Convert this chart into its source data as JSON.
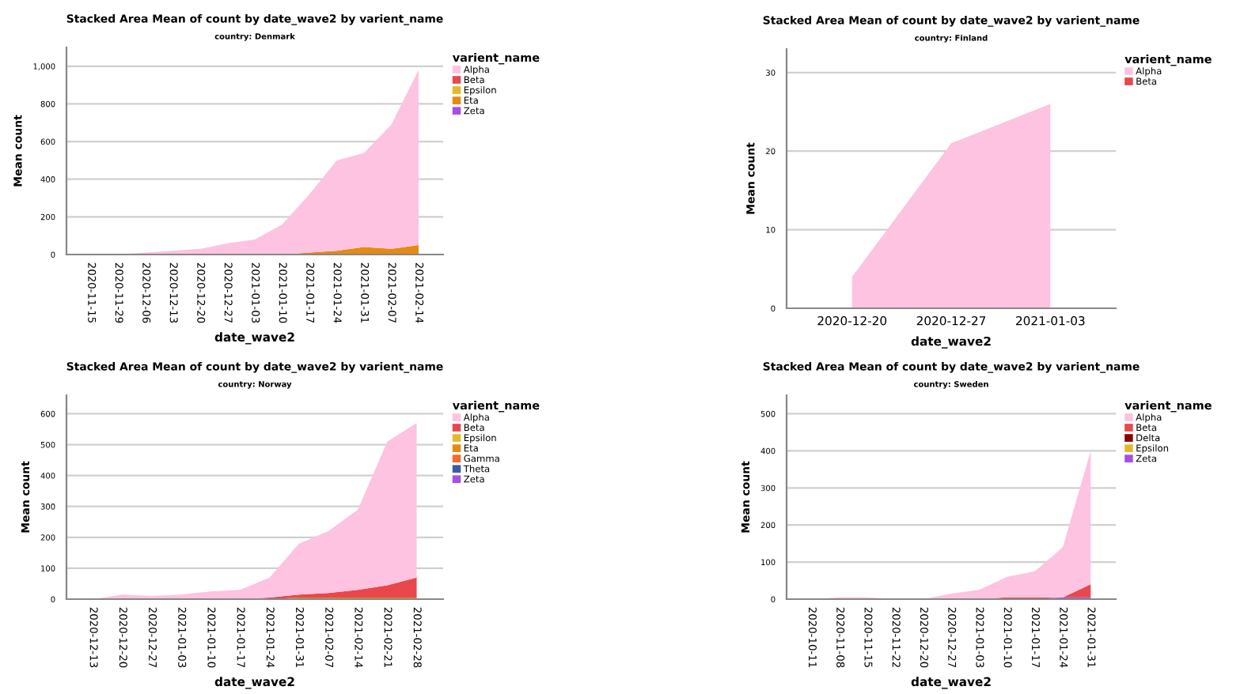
{
  "chart_data": [
    {
      "type": "area",
      "stacked": true,
      "title": "Stacked Area Mean of count by date_wave2 by varient_name",
      "subtitle": "country: Denmark",
      "xlabel": "date_wave2",
      "ylabel": "Mean count",
      "legend_title": "varient_name",
      "legend": "right",
      "grid": "y",
      "ylim": [
        0,
        1100
      ],
      "yticks": [
        0,
        200,
        400,
        600,
        800,
        {
          "value": 1000,
          "label": "1,000"
        }
      ],
      "categories": [
        "2020-11-15",
        "2020-11-29",
        "2020-12-06",
        "2020-12-13",
        "2020-12-20",
        "2020-12-27",
        "2021-01-03",
        "2021-01-10",
        "2021-01-17",
        "2021-01-24",
        "2021-01-31",
        "2021-02-07",
        "2021-02-14"
      ],
      "series": [
        {
          "name": "Zeta",
          "color": "#a64fe8",
          "values": [
            null,
            null,
            null,
            null,
            null,
            null,
            null,
            null,
            null,
            null,
            null,
            null,
            null
          ]
        },
        {
          "name": "Eta",
          "color": "#e58a12",
          "values": [
            0,
            0,
            0,
            0,
            0,
            0,
            0,
            0,
            10,
            20,
            40,
            30,
            50
          ]
        },
        {
          "name": "Epsilon",
          "color": "#e3b92a",
          "values": [
            null,
            null,
            null,
            null,
            null,
            null,
            null,
            null,
            null,
            null,
            null,
            null,
            null
          ]
        },
        {
          "name": "Beta",
          "color": "#e8474c",
          "values": [
            null,
            null,
            null,
            null,
            null,
            null,
            null,
            null,
            null,
            null,
            null,
            null,
            null
          ]
        },
        {
          "name": "Alpha",
          "color": "#fdc3e0",
          "values": [
            0,
            0,
            10,
            20,
            30,
            60,
            80,
            160,
            310,
            480,
            500,
            660,
            930
          ]
        }
      ]
    },
    {
      "type": "area",
      "stacked": true,
      "title": "Stacked Area Mean of count by date_wave2 by varient_name",
      "subtitle": "country: Finland",
      "xlabel": "date_wave2",
      "ylabel": "Mean count",
      "legend_title": "varient_name",
      "legend": "right",
      "grid": "y",
      "ylim": [
        0,
        33
      ],
      "yticks": [
        0,
        10,
        20,
        30
      ],
      "categories": [
        "2020-12-20",
        "2020-12-27",
        "2021-01-03"
      ],
      "series": [
        {
          "name": "Beta",
          "color": "#e8474c",
          "values": [
            null,
            null,
            null
          ]
        },
        {
          "name": "Alpha",
          "color": "#fdc3e0",
          "values": [
            4,
            21,
            26
          ]
        }
      ]
    },
    {
      "type": "area",
      "stacked": true,
      "title": "Stacked Area Mean of count by date_wave2 by varient_name",
      "subtitle": "country: Norway",
      "xlabel": "date_wave2",
      "ylabel": "Mean count",
      "legend_title": "varient_name",
      "legend": "right",
      "grid": "y",
      "ylim": [
        0,
        660
      ],
      "yticks": [
        0,
        100,
        200,
        300,
        400,
        500,
        600
      ],
      "categories": [
        "2020-12-13",
        "2020-12-20",
        "2020-12-27",
        "2021-01-03",
        "2021-01-10",
        "2021-01-17",
        "2021-01-24",
        "2021-01-31",
        "2021-02-07",
        "2021-02-14",
        "2021-02-21",
        "2021-02-28"
      ],
      "series": [
        {
          "name": "Zeta",
          "color": "#a64fe8",
          "values": [
            null,
            null,
            null,
            null,
            null,
            null,
            null,
            null,
            null,
            null,
            null,
            null
          ]
        },
        {
          "name": "Theta",
          "color": "#3b5ba8",
          "values": [
            null,
            null,
            null,
            null,
            null,
            null,
            null,
            null,
            null,
            null,
            null,
            null
          ]
        },
        {
          "name": "Gamma",
          "color": "#f26b2c",
          "values": [
            null,
            null,
            null,
            null,
            null,
            null,
            null,
            null,
            null,
            null,
            null,
            null
          ]
        },
        {
          "name": "Eta",
          "color": "#e58a12",
          "values": [
            0,
            0,
            0,
            0,
            0,
            0,
            0,
            5,
            5,
            5,
            5,
            5
          ]
        },
        {
          "name": "Epsilon",
          "color": "#e3b92a",
          "values": [
            null,
            null,
            null,
            null,
            null,
            null,
            null,
            null,
            null,
            null,
            null,
            null
          ]
        },
        {
          "name": "Beta",
          "color": "#e8474c",
          "values": [
            0,
            0,
            0,
            0,
            0,
            0,
            5,
            10,
            15,
            25,
            40,
            65
          ]
        },
        {
          "name": "Alpha",
          "color": "#fdc3e0",
          "values": [
            0,
            15,
            10,
            15,
            25,
            30,
            65,
            165,
            200,
            260,
            465,
            500
          ]
        }
      ]
    },
    {
      "type": "area",
      "stacked": true,
      "title": "Stacked Area Mean of count by date_wave2 by varient_name",
      "subtitle": "country: Sweden",
      "xlabel": "date_wave2",
      "ylabel": "Mean count",
      "legend_title": "varient_name",
      "legend": "right",
      "grid": "y",
      "ylim": [
        0,
        550
      ],
      "yticks": [
        0,
        100,
        200,
        300,
        400,
        500
      ],
      "categories": [
        "2020-10-11",
        "2020-11-08",
        "2020-11-15",
        "2020-11-22",
        "2020-12-20",
        "2020-12-27",
        "2021-01-03",
        "2021-01-10",
        "2021-01-17",
        "2021-01-24",
        "2021-01-31"
      ],
      "series": [
        {
          "name": "Zeta",
          "color": "#a64fe8",
          "values": [
            0,
            0,
            0,
            0,
            0,
            0,
            0,
            0,
            0,
            5,
            5
          ]
        },
        {
          "name": "Epsilon",
          "color": "#e3b92a",
          "values": [
            null,
            null,
            null,
            null,
            null,
            null,
            null,
            null,
            null,
            null,
            null
          ]
        },
        {
          "name": "Delta",
          "color": "#8b0000",
          "values": [
            null,
            null,
            null,
            null,
            null,
            null,
            null,
            null,
            null,
            null,
            null
          ]
        },
        {
          "name": "Beta",
          "color": "#e8474c",
          "values": [
            0,
            0,
            0,
            0,
            0,
            0,
            0,
            5,
            5,
            0,
            35
          ]
        },
        {
          "name": "Alpha",
          "color": "#fdc3e0",
          "values": [
            0,
            5,
            5,
            0,
            0,
            15,
            25,
            55,
            70,
            135,
            360
          ]
        }
      ]
    }
  ]
}
